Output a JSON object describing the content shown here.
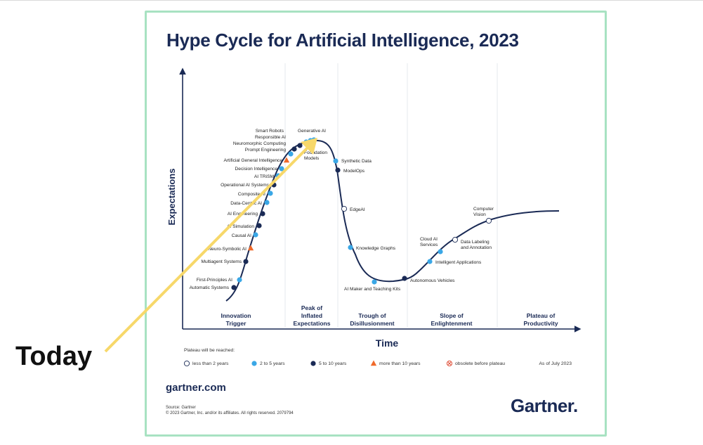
{
  "title": "Hype Cycle for Artificial Intelligence, 2023",
  "callout": "Today",
  "footer": {
    "site": "gartner.com",
    "source": "Source: Gartner",
    "copyright": "© 2023 Gartner, Inc. and/or its affiliates. All rights reserved. 2079794",
    "logo": "Gartner"
  },
  "colors": {
    "frame": "#a8e2c2",
    "navy": "#1a2a55",
    "light_blue": "#3aa7e6",
    "dark_dot": "#1a2a55",
    "orange": "#f06a2a",
    "arrow": "#f7d86a"
  },
  "chart_data": {
    "type": "line",
    "title": "Hype Cycle for Artificial Intelligence, 2023",
    "xlabel": "Time",
    "ylabel": "Expectations",
    "phases": [
      {
        "lines": [
          "Innovation",
          "Trigger"
        ]
      },
      {
        "lines": [
          "Peak of",
          "Inflated",
          "Expectations"
        ]
      },
      {
        "lines": [
          "Trough of",
          "Disillusionment"
        ]
      },
      {
        "lines": [
          "Slope of",
          "Enlightenment"
        ]
      },
      {
        "lines": [
          "Plateau of",
          "Productivity"
        ]
      }
    ],
    "legend": {
      "heading": "Plateau will be reached:",
      "items": [
        {
          "label": "less than 2 years",
          "marker": "open-circle"
        },
        {
          "label": "2 to 5 years",
          "marker": "light-blue-dot"
        },
        {
          "label": "5 to 10 years",
          "marker": "dark-dot"
        },
        {
          "label": "more than 10 years",
          "marker": "orange-triangle"
        },
        {
          "label": "obsolete before plateau",
          "marker": "crossed-circle"
        }
      ],
      "as_of": "As of July 2023"
    },
    "technologies": [
      {
        "name": "Automatic Systems",
        "category": "dark-dot"
      },
      {
        "name": "First-Principles AI",
        "category": "light-blue-dot"
      },
      {
        "name": "Multiagent Systems",
        "category": "dark-dot"
      },
      {
        "name": "Neuro-Symbolic AI",
        "category": "orange-triangle"
      },
      {
        "name": "Causal AI",
        "category": "light-blue-dot"
      },
      {
        "name": "AI Simulation",
        "category": "dark-dot"
      },
      {
        "name": "AI Engineering",
        "category": "dark-dot"
      },
      {
        "name": "Data-Centric AI",
        "category": "light-blue-dot"
      },
      {
        "name": "Composite AI",
        "category": "light-blue-dot"
      },
      {
        "name": "Operational AI Systems",
        "category": "dark-dot"
      },
      {
        "name": "AI TRiSM",
        "category": "light-blue-dot"
      },
      {
        "name": "Decision Intelligence",
        "category": "light-blue-dot"
      },
      {
        "name": "Artificial General Intelligence",
        "category": "orange-triangle"
      },
      {
        "name": "Prompt Engineering",
        "category": "light-blue-dot"
      },
      {
        "name": "Neuromorphic Computing",
        "category": "dark-dot"
      },
      {
        "name": "Responsible AI",
        "category": "dark-dot"
      },
      {
        "name": "Smart Robots",
        "category": "light-blue-dot"
      },
      {
        "name": "Generative AI",
        "category": "light-blue-dot"
      },
      {
        "name": "Foundation Models",
        "category": "light-blue-dot"
      },
      {
        "name": "Synthetic Data",
        "category": "light-blue-dot"
      },
      {
        "name": "ModelOps",
        "category": "dark-dot"
      },
      {
        "name": "EdgeAI",
        "category": "open-circle"
      },
      {
        "name": "Knowledge Graphs",
        "category": "light-blue-dot"
      },
      {
        "name": "AI Maker and Teaching Kits",
        "category": "light-blue-dot"
      },
      {
        "name": "Autonomous Vehicles",
        "category": "dark-dot"
      },
      {
        "name": "Intelligent Applications",
        "category": "light-blue-dot"
      },
      {
        "name": "Cloud AI Services",
        "category": "light-blue-dot"
      },
      {
        "name": "Data Labeling and Annotation",
        "category": "open-circle"
      },
      {
        "name": "Computer Vision",
        "category": "open-circle"
      }
    ]
  }
}
